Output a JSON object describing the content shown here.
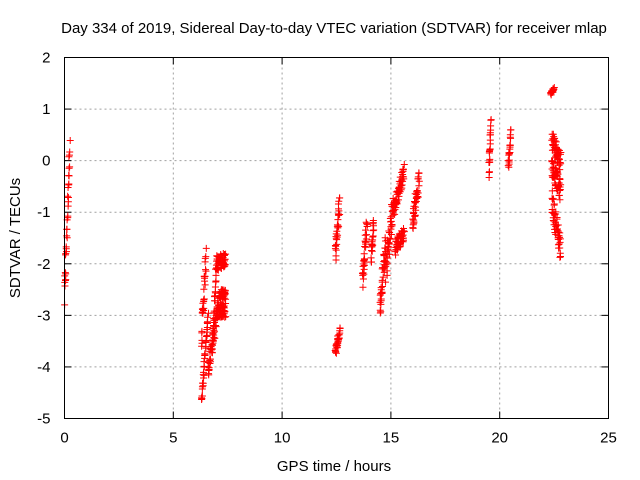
{
  "chart_data": {
    "type": "scatter",
    "title": "Day 334 of 2019, Sidereal Day-to-day VTEC variation (SDTVAR) for receiver mlap",
    "xlabel": "GPS time / hours",
    "ylabel": "SDTVAR / TECUs",
    "xlim": [
      0,
      25
    ],
    "ylim": [
      -5,
      2
    ],
    "xticks": [
      0,
      5,
      10,
      15,
      20,
      25
    ],
    "yticks": [
      -5,
      -4,
      -3,
      -2,
      -1,
      0,
      1,
      2
    ],
    "grid": true,
    "marker": "plus",
    "color": "#ff0000",
    "segments": [
      {
        "t0": 0.0,
        "t1": 0.25,
        "v0": -2.7,
        "v1": 0.4,
        "scatter": 0.25
      },
      {
        "t0": 6.3,
        "t1": 6.6,
        "v0": -4.7,
        "v1": -3.0,
        "scatter": 0.1
      },
      {
        "t0": 6.6,
        "t1": 7.0,
        "v0": -4.1,
        "v1": -3.0,
        "scatter": 0.15
      },
      {
        "t0": 6.8,
        "t1": 7.0,
        "v0": -3.6,
        "v1": -1.9,
        "scatter": 0.15
      },
      {
        "t0": 7.0,
        "t1": 7.4,
        "v0": -2.9,
        "v1": -2.9,
        "scatter": 0.15
      },
      {
        "t0": 7.0,
        "t1": 7.4,
        "v0": -2.0,
        "v1": -1.9,
        "scatter": 0.15
      },
      {
        "t0": 6.3,
        "t1": 6.5,
        "v0": -3.4,
        "v1": -1.9,
        "scatter": 0.2
      },
      {
        "t0": 7.1,
        "t1": 7.4,
        "v0": -2.6,
        "v1": -2.6,
        "scatter": 0.1
      },
      {
        "t0": 12.45,
        "t1": 12.65,
        "v0": -3.7,
        "v1": -3.3,
        "scatter": 0.1
      },
      {
        "t0": 12.45,
        "t1": 12.65,
        "v0": -1.8,
        "v1": -0.8,
        "scatter": 0.2
      },
      {
        "t0": 13.7,
        "t1": 13.9,
        "v0": -2.3,
        "v1": -1.2,
        "scatter": 0.2
      },
      {
        "t0": 14.1,
        "t1": 14.2,
        "v0": -1.9,
        "v1": -1.2,
        "scatter": 0.15
      },
      {
        "t0": 14.5,
        "t1": 14.75,
        "v0": -2.9,
        "v1": -1.6,
        "scatter": 0.25
      },
      {
        "t0": 14.75,
        "t1": 15.1,
        "v0": -2.2,
        "v1": -0.9,
        "scatter": 0.3
      },
      {
        "t0": 15.2,
        "t1": 15.6,
        "v0": -1.7,
        "v1": -1.4,
        "scatter": 0.15
      },
      {
        "t0": 15.1,
        "t1": 15.6,
        "v0": -1.0,
        "v1": -0.2,
        "scatter": 0.15
      },
      {
        "t0": 16.0,
        "t1": 16.3,
        "v0": -1.2,
        "v1": -0.35,
        "scatter": 0.2
      },
      {
        "t0": 19.5,
        "t1": 19.6,
        "v0": -0.3,
        "v1": 0.8,
        "scatter": 0.1
      },
      {
        "t0": 20.4,
        "t1": 20.5,
        "v0": -0.1,
        "v1": 0.55,
        "scatter": 0.1
      },
      {
        "t0": 22.35,
        "t1": 22.5,
        "v0": 1.3,
        "v1": 1.4,
        "scatter": 0.03
      },
      {
        "t0": 22.4,
        "t1": 22.8,
        "v0": 0.4,
        "v1": 0.0,
        "scatter": 0.2
      },
      {
        "t0": 22.4,
        "t1": 22.8,
        "v0": -0.1,
        "v1": -0.6,
        "scatter": 0.2
      },
      {
        "t0": 22.4,
        "t1": 22.8,
        "v0": -0.8,
        "v1": -1.7,
        "scatter": 0.25
      }
    ]
  }
}
